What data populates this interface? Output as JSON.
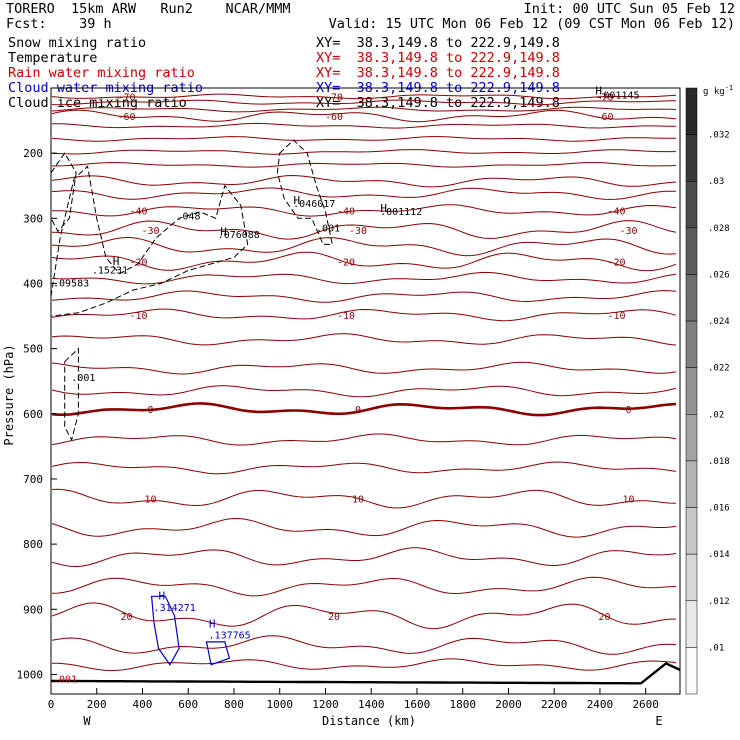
{
  "header": {
    "line1_left": "TORERO  15km ARW   Run2    NCAR/MMM",
    "line1_right": "Init: 00 UTC Sun 05 Feb 12",
    "line2_left": "Fcst:    39 h",
    "line2_right": "Valid: 15 UTC Mon 06 Feb 12 (09 CST Mon 06 Feb 12)",
    "fields": [
      {
        "name": "Snow mixing ratio",
        "xy": "XY=  38.3,149.8 to 222.9,149.8",
        "color": "#000000",
        "xy_color": "#000000"
      },
      {
        "name": "Temperature",
        "xy": "XY=  38.3,149.8 to 222.9,149.8",
        "color": "#000000",
        "xy_color": "#cc0000"
      },
      {
        "name": "Rain water mixing ratio",
        "xy": "XY=  38.3,149.8 to 222.9,149.8",
        "color": "#cc0000",
        "xy_color": "#cc0000"
      },
      {
        "name": "Cloud water mixing ratio",
        "xy": "XY=  38.3,149.8 to 222.9,149.8",
        "color": "#0000cc",
        "xy_color": "#0000cc"
      },
      {
        "name": "Cloud ice mixing ratio",
        "xy": "XY=  38.3,149.8 to 222.9,149.8",
        "color": "#000000",
        "xy_color": "#000000"
      }
    ]
  },
  "chart_data": {
    "type": "cross-section contour",
    "xlabel": "Distance (km)",
    "ylabel": "Pressure (hPa)",
    "x_ticks": [
      0,
      200,
      400,
      600,
      800,
      1000,
      1200,
      1400,
      1600,
      1800,
      2000,
      2200,
      2400,
      2600
    ],
    "xlim": [
      0,
      2750
    ],
    "y_ticks": [
      200,
      300,
      400,
      500,
      600,
      700,
      800,
      900,
      1000
    ],
    "ylim": [
      1030,
      100
    ],
    "x_end_labels": {
      "left": "W",
      "right": "E"
    },
    "colorbar": {
      "unit": "g kg",
      "unit_exp": "-1",
      "ticks": [
        ".032",
        ".03",
        ".028",
        ".026",
        ".024",
        ".022",
        ".02",
        ".018",
        ".016",
        ".014",
        ".012",
        ".01"
      ],
      "bands": 13
    },
    "temperature_isotherms": [
      {
        "label": "-70",
        "p": 113,
        "wobble": 0
      },
      {
        "label": "",
        "p": 122,
        "wobble": 0
      },
      {
        "label": "",
        "p": 133,
        "wobble": 0
      },
      {
        "label": "-60",
        "p": 143,
        "wobble": 1
      },
      {
        "label": "",
        "p": 158,
        "wobble": 0
      },
      {
        "label": "",
        "p": 178,
        "wobble": 0
      },
      {
        "label": "",
        "p": 198,
        "wobble": 0
      },
      {
        "label": "",
        "p": 218,
        "wobble": 0
      },
      {
        "label": "",
        "p": 243,
        "wobble": 1
      },
      {
        "label": "",
        "p": 262,
        "wobble": 1
      },
      {
        "label": "-40",
        "p": 288,
        "wobble": 1
      },
      {
        "label": "-30",
        "p": 318,
        "wobble": 2
      },
      {
        "label": "",
        "p": 343,
        "wobble": 2
      },
      {
        "label": "-20",
        "p": 366,
        "wobble": 2
      },
      {
        "label": "",
        "p": 392,
        "wobble": 1
      },
      {
        "label": "",
        "p": 420,
        "wobble": 1
      },
      {
        "label": "-10",
        "p": 448,
        "wobble": 1
      },
      {
        "label": "",
        "p": 486,
        "wobble": 1
      },
      {
        "label": "",
        "p": 530,
        "wobble": 1
      },
      {
        "label": "",
        "p": 565,
        "wobble": 1
      },
      {
        "label": "0",
        "p": 593,
        "wobble": 1
      },
      {
        "label": "",
        "p": 640,
        "wobble": 1
      },
      {
        "label": "",
        "p": 683,
        "wobble": 1
      },
      {
        "label": "10",
        "p": 730,
        "wobble": 2
      },
      {
        "label": "",
        "p": 775,
        "wobble": 2
      },
      {
        "label": "",
        "p": 820,
        "wobble": 2
      },
      {
        "label": "",
        "p": 865,
        "wobble": 2
      },
      {
        "label": "20",
        "p": 910,
        "wobble": 3
      },
      {
        "label": "",
        "p": 955,
        "wobble": 2
      },
      {
        "label": "",
        "p": 985,
        "wobble": 1
      }
    ],
    "snow_contour_labels": [
      {
        "text": ".09583",
        "x": 0,
        "p": 405
      },
      {
        "text": ".15231",
        "x": 170,
        "p": 385
      },
      {
        "text": ".048",
        "x": 540,
        "p": 302
      },
      {
        "text": ".076088",
        "x": 720,
        "p": 330
      },
      {
        "text": ".046017",
        "x": 1050,
        "p": 283
      },
      {
        "text": ".001",
        "x": 1150,
        "p": 320
      },
      {
        "text": ".001112",
        "x": 1430,
        "p": 295
      },
      {
        "text": ".001145",
        "x": 2380,
        "p": 116
      },
      {
        "text": ".001",
        "x": 80,
        "p": 550
      }
    ],
    "cloud_water_labels": [
      {
        "text": ".314271",
        "x": 440,
        "p": 903
      },
      {
        "text": ".137765",
        "x": 680,
        "p": 945
      }
    ],
    "rain_label": {
      "text": ".001",
      "x": 0,
      "p": 1012
    },
    "highs": [
      {
        "text": "H",
        "x": 270,
        "p": 372,
        "color": "#000000"
      },
      {
        "text": "H",
        "x": 740,
        "p": 326,
        "color": "#000000"
      },
      {
        "text": "H",
        "x": 1060,
        "p": 278,
        "color": "#000000"
      },
      {
        "text": "H",
        "x": 1440,
        "p": 290,
        "color": "#000000"
      },
      {
        "text": "H",
        "x": 2380,
        "p": 110,
        "color": "#000000"
      },
      {
        "text": "H",
        "x": 470,
        "p": 885,
        "color": "#0000cc"
      },
      {
        "text": "H",
        "x": 690,
        "p": 928,
        "color": "#0000cc"
      }
    ]
  }
}
